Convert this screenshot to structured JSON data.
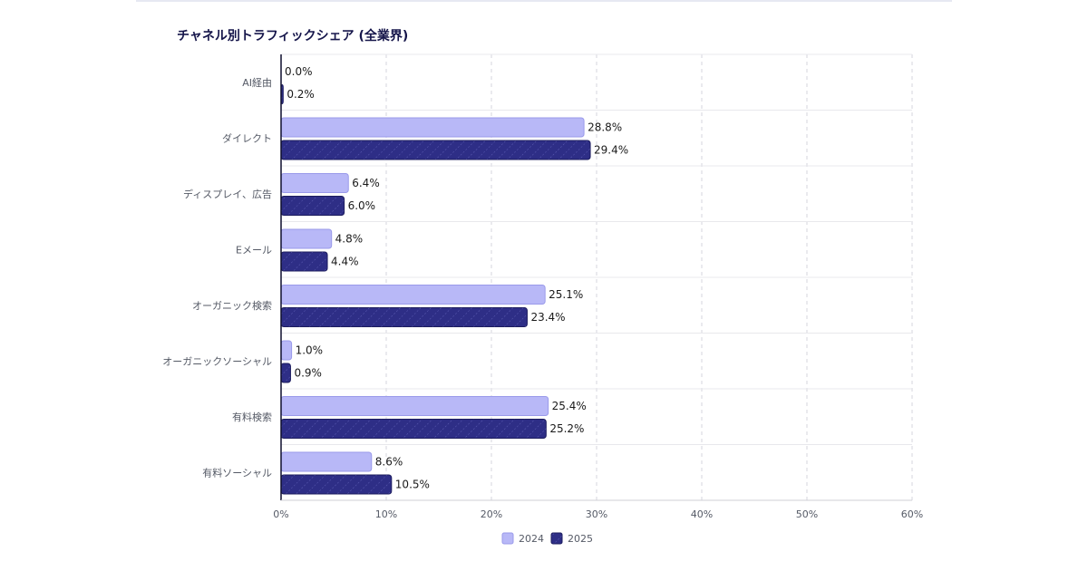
{
  "chart_data": {
    "type": "bar",
    "orientation": "horizontal",
    "title": "チャネル別トラフィックシェア (全業界)",
    "categories": [
      "AI経由",
      "ダイレクト",
      "ディスプレイ、広告",
      "Eメール",
      "オーガニック検索",
      "オーガニックソーシャル",
      "有料検索",
      "有料ソーシャル"
    ],
    "series": [
      {
        "name": "2024",
        "values": [
          0.0,
          28.8,
          6.4,
          4.8,
          25.1,
          1.0,
          25.4,
          8.6
        ],
        "labels": [
          "0.0%",
          "28.8%",
          "6.4%",
          "4.8%",
          "25.1%",
          "1.0%",
          "25.4%",
          "8.6%"
        ],
        "color": "#b8b8f7",
        "stroke": "#9a9aea",
        "pattern": "none"
      },
      {
        "name": "2025",
        "values": [
          0.2,
          29.4,
          6.0,
          4.4,
          23.4,
          0.9,
          25.2,
          10.5
        ],
        "labels": [
          "0.2%",
          "29.4%",
          "6.0%",
          "4.4%",
          "23.4%",
          "0.9%",
          "25.2%",
          "10.5%"
        ],
        "color": "#2e2e86",
        "stroke": "#1c1c5e",
        "pattern": "diagonal-hatch"
      }
    ],
    "xlim": [
      0,
      60
    ],
    "xticks": [
      0,
      10,
      20,
      30,
      40,
      50,
      60
    ],
    "xtick_labels": [
      "0%",
      "10%",
      "20%",
      "30%",
      "40%",
      "50%",
      "60%"
    ],
    "grid": true,
    "legend_position": "bottom-center",
    "xlabel": "",
    "ylabel": ""
  }
}
